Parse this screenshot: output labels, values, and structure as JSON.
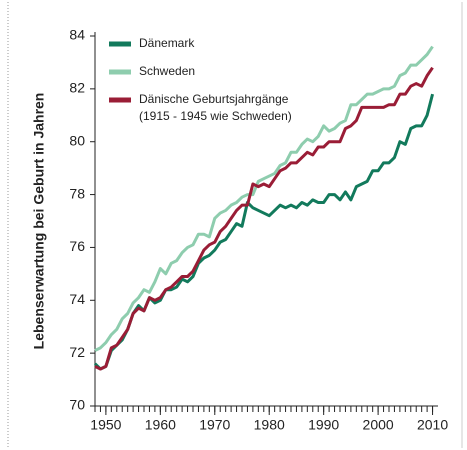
{
  "chart_data": {
    "type": "line",
    "y_label": "Lebenserwartung bei Geburt in Jahren",
    "x": [
      1948,
      1949,
      1950,
      1951,
      1952,
      1953,
      1954,
      1955,
      1956,
      1957,
      1958,
      1959,
      1960,
      1961,
      1962,
      1963,
      1964,
      1965,
      1966,
      1967,
      1968,
      1969,
      1970,
      1971,
      1972,
      1973,
      1974,
      1975,
      1976,
      1977,
      1978,
      1979,
      1980,
      1981,
      1982,
      1983,
      1984,
      1985,
      1986,
      1987,
      1988,
      1989,
      1990,
      1991,
      1992,
      1993,
      1994,
      1995,
      1996,
      1997,
      1998,
      1999,
      2000,
      2001,
      2002,
      2003,
      2004,
      2005,
      2006,
      2007,
      2008,
      2009,
      2010
    ],
    "series": [
      {
        "name": "Dänemark",
        "color": "#127a5c",
        "values": [
          71.6,
          71.4,
          71.5,
          72.1,
          72.3,
          72.5,
          72.9,
          73.5,
          73.8,
          73.6,
          74.1,
          73.9,
          74.0,
          74.4,
          74.4,
          74.5,
          74.8,
          74.7,
          74.9,
          75.4,
          75.6,
          75.7,
          75.9,
          76.2,
          76.3,
          76.6,
          76.9,
          76.8,
          77.7,
          77.5,
          77.4,
          77.3,
          77.2,
          77.4,
          77.6,
          77.5,
          77.6,
          77.5,
          77.7,
          77.6,
          77.8,
          77.7,
          77.7,
          78.0,
          78.0,
          77.8,
          78.1,
          77.8,
          78.3,
          78.4,
          78.5,
          78.9,
          78.9,
          79.2,
          79.2,
          79.4,
          80.0,
          79.9,
          80.5,
          80.6,
          80.6,
          81.0,
          81.8
        ]
      },
      {
        "name": "Schweden",
        "color": "#8ecdae",
        "values": [
          72.1,
          72.2,
          72.4,
          72.7,
          72.9,
          73.3,
          73.5,
          73.9,
          74.1,
          74.4,
          74.3,
          74.7,
          75.2,
          75.0,
          75.4,
          75.5,
          75.8,
          76.0,
          76.1,
          76.5,
          76.5,
          76.4,
          77.1,
          77.3,
          77.4,
          77.6,
          77.7,
          77.9,
          78.0,
          78.0,
          78.5,
          78.6,
          78.7,
          78.8,
          79.1,
          79.2,
          79.6,
          79.6,
          79.9,
          80.1,
          80.0,
          80.2,
          80.6,
          80.4,
          80.5,
          80.7,
          80.8,
          81.4,
          81.4,
          81.6,
          81.8,
          81.8,
          81.9,
          82.0,
          82.0,
          82.1,
          82.5,
          82.6,
          82.9,
          82.9,
          83.1,
          83.3,
          83.6
        ]
      },
      {
        "name": "Dänische Geburtsjahrgänge",
        "color": "#9a1d36",
        "values": [
          71.5,
          71.4,
          71.5,
          72.2,
          72.3,
          72.6,
          72.9,
          73.5,
          73.7,
          73.6,
          74.1,
          74.0,
          74.1,
          74.4,
          74.5,
          74.7,
          74.9,
          74.9,
          75.1,
          75.5,
          75.9,
          76.1,
          76.2,
          76.6,
          76.8,
          77.1,
          77.4,
          77.6,
          77.6,
          78.4,
          78.3,
          78.4,
          78.3,
          78.6,
          78.9,
          79.0,
          79.2,
          79.2,
          79.4,
          79.6,
          79.5,
          79.8,
          79.8,
          80.0,
          80.0,
          80.0,
          80.5,
          80.6,
          80.8,
          81.3,
          81.3,
          81.3,
          81.3,
          81.3,
          81.4,
          81.4,
          81.8,
          81.8,
          82.1,
          82.2,
          82.1,
          82.5,
          82.8
        ]
      }
    ],
    "legend_note": "(1915 - 1945 wie Schweden)",
    "xlim": [
      1948,
      2011
    ],
    "xticks": [
      1950,
      1960,
      1970,
      1980,
      1990,
      2000,
      2010
    ],
    "ylim": [
      70,
      84
    ],
    "yticks": [
      70,
      72,
      74,
      76,
      78,
      80,
      82,
      84
    ],
    "grid": false,
    "legend": "upper left"
  }
}
